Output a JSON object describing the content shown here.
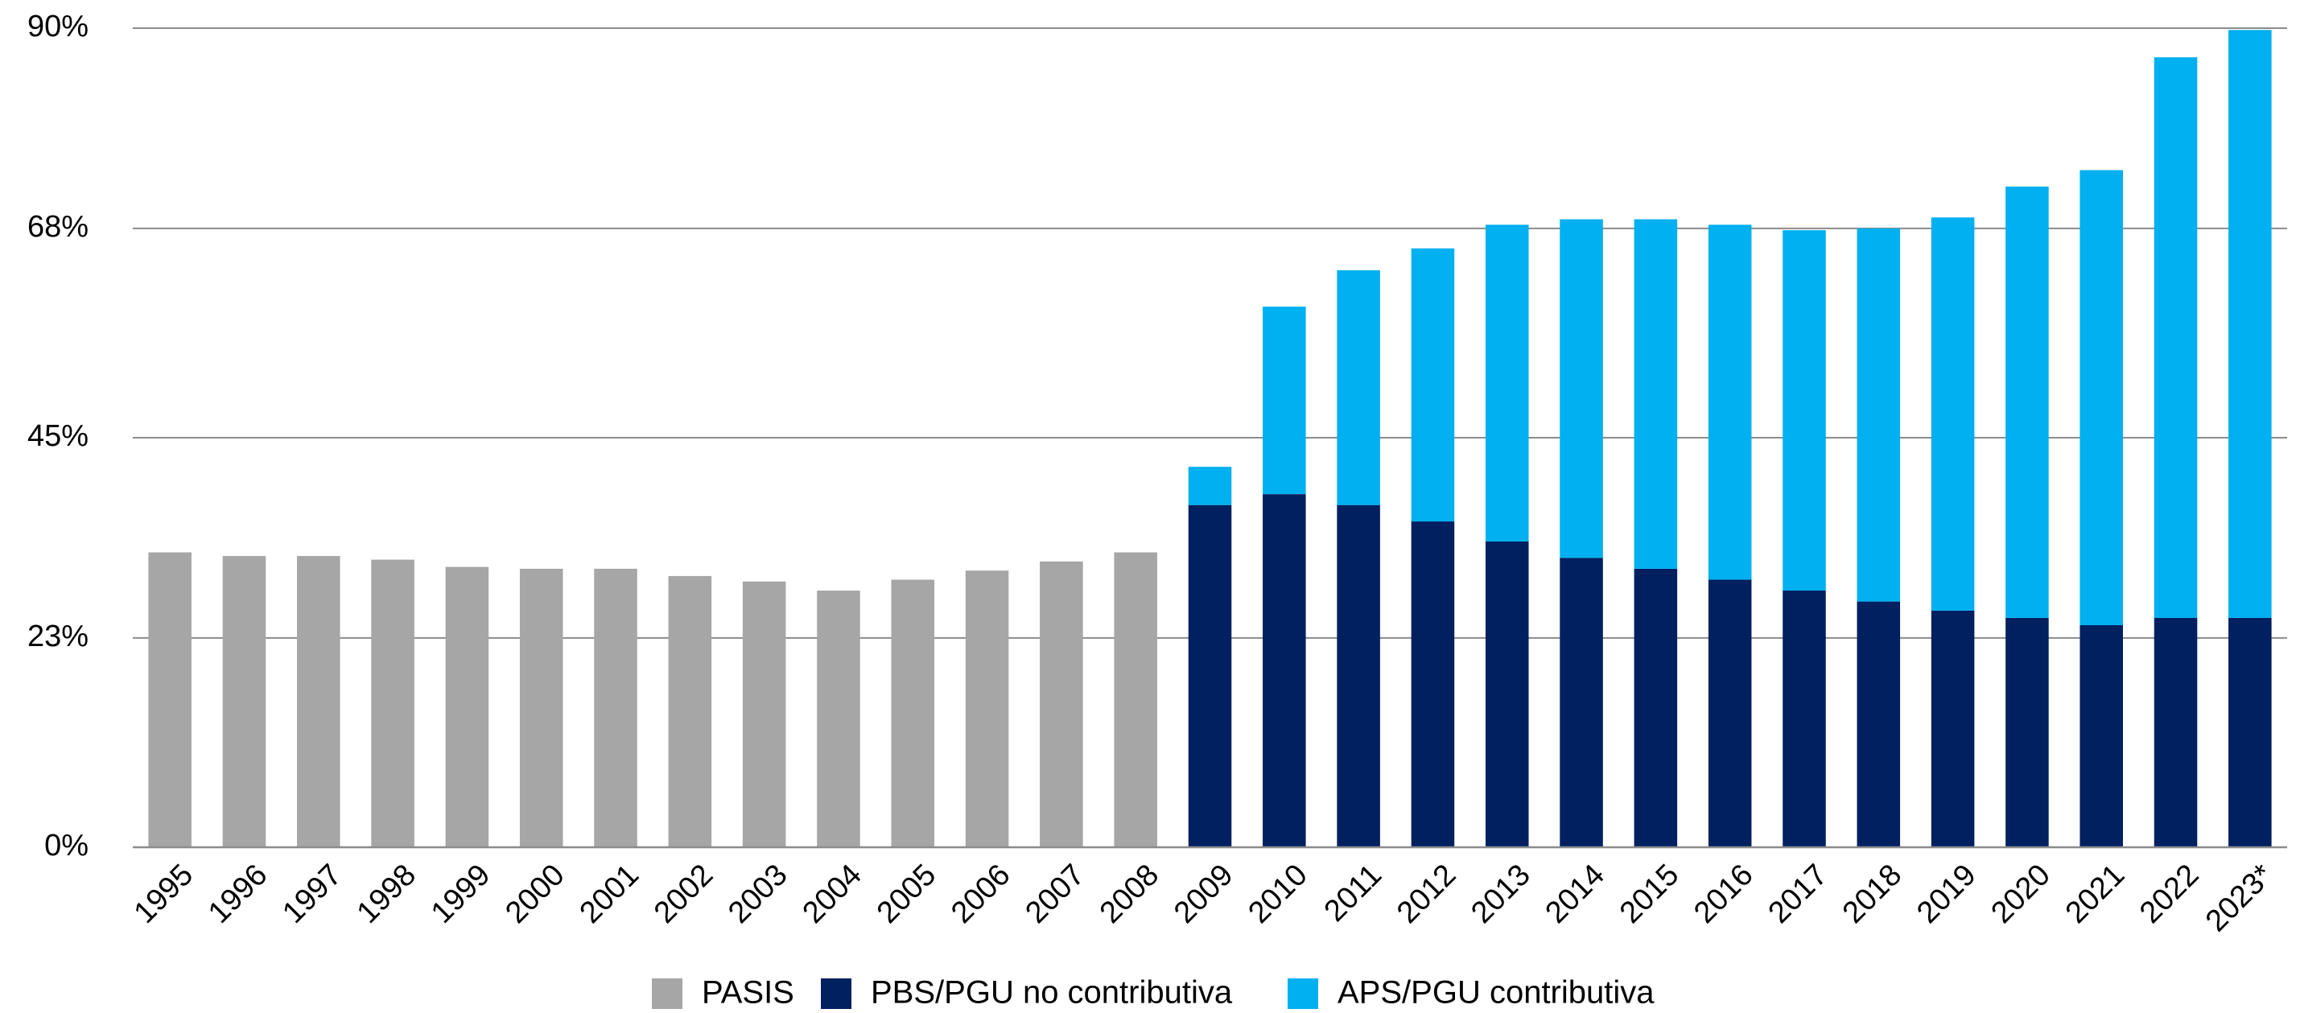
{
  "chart_data": {
    "type": "bar",
    "stacked": true,
    "categories": [
      "1995",
      "1996",
      "1997",
      "1998",
      "1999",
      "2000",
      "2001",
      "2002",
      "2003",
      "2004",
      "2005",
      "2006",
      "2007",
      "2008",
      "2009",
      "2010",
      "2011",
      "2012",
      "2013",
      "2014",
      "2015",
      "2016",
      "2017",
      "2018",
      "2019",
      "2020",
      "2021",
      "2022",
      "2023*"
    ],
    "series": [
      {
        "name": "PASIS",
        "color": "#a6a6a6",
        "values": [
          32.4,
          32.0,
          32.0,
          31.6,
          30.8,
          30.6,
          30.6,
          29.8,
          29.2,
          28.2,
          29.4,
          30.4,
          31.4,
          32.4,
          null,
          null,
          null,
          null,
          null,
          null,
          null,
          null,
          null,
          null,
          null,
          null,
          null,
          null,
          null
        ]
      },
      {
        "name": "PBS/PGU no contributiva",
        "color": "#002060",
        "values": [
          null,
          null,
          null,
          null,
          null,
          null,
          null,
          null,
          null,
          null,
          null,
          null,
          null,
          null,
          37.6,
          38.8,
          37.6,
          35.8,
          33.6,
          31.8,
          30.6,
          29.4,
          28.2,
          27.0,
          26.0,
          25.2,
          24.4,
          25.2,
          25.2
        ]
      },
      {
        "name": "APS/PGU contributiva",
        "color": "#00b0f0",
        "values": [
          null,
          null,
          null,
          null,
          null,
          null,
          null,
          null,
          null,
          null,
          null,
          null,
          null,
          null,
          4.2,
          20.6,
          25.8,
          30.0,
          34.8,
          37.2,
          38.4,
          39.0,
          39.6,
          41.0,
          43.2,
          47.4,
          50.0,
          61.6,
          64.6
        ]
      }
    ],
    "title": "",
    "xlabel": "",
    "ylabel": "",
    "ylim": [
      0,
      90
    ],
    "yticks": [
      0,
      23,
      45,
      68,
      90
    ],
    "ytick_labels": [
      "0%",
      "23%",
      "45%",
      "68%",
      "90%"
    ],
    "grid": true,
    "legend_position": "bottom"
  }
}
